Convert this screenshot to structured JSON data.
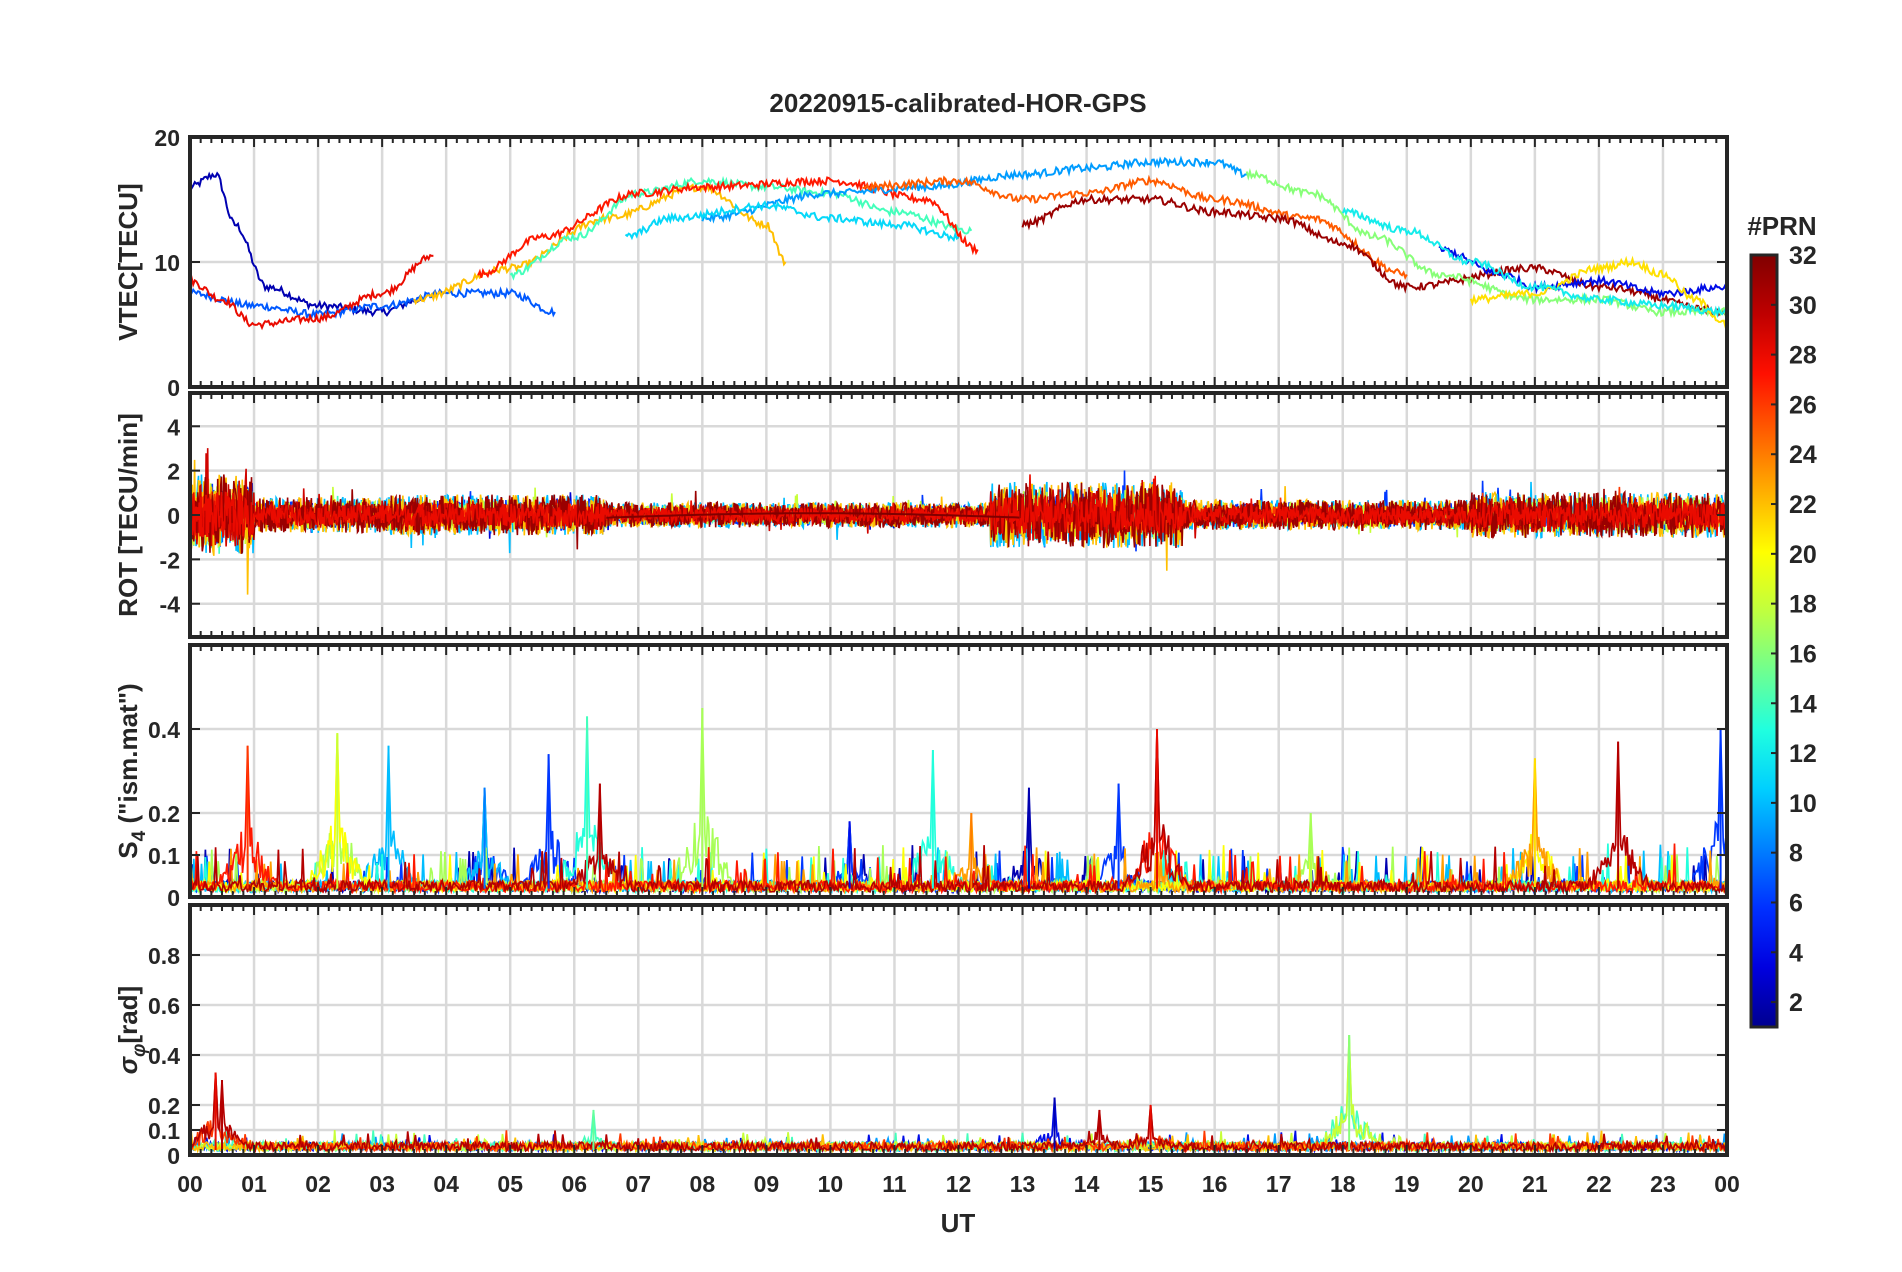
{
  "chart_data": {
    "type": "line",
    "title": "20220915-calibrated-HOR-GPS",
    "xlabel": "UT",
    "x_tick_labels": [
      "00",
      "01",
      "02",
      "03",
      "04",
      "05",
      "06",
      "07",
      "08",
      "09",
      "10",
      "11",
      "12",
      "13",
      "14",
      "15",
      "16",
      "17",
      "18",
      "19",
      "20",
      "21",
      "22",
      "23",
      "00"
    ],
    "xlim": [
      0,
      24
    ],
    "colorbar": {
      "title": "#PRN",
      "range": [
        1,
        32
      ],
      "tick_labels": [
        "2",
        "4",
        "6",
        "8",
        "10",
        "12",
        "14",
        "16",
        "18",
        "20",
        "22",
        "24",
        "26",
        "28",
        "30",
        "32"
      ],
      "colors": [
        "#00008f",
        "#0000df",
        "#0030ff",
        "#0080ff",
        "#00cfff",
        "#20ffdf",
        "#70ff8f",
        "#bfff40",
        "#ffff00",
        "#ffb000",
        "#ff6000",
        "#ff1000",
        "#bf0000",
        "#800000"
      ]
    },
    "panels": [
      {
        "name": "vtec",
        "ylabel": "VTEC[TECU]",
        "ylim": [
          0,
          20
        ],
        "ytick_labels": [
          "0",
          "10",
          "20"
        ],
        "ytick_values": [
          0,
          10,
          20
        ],
        "series": [
          {
            "prn": 2,
            "t": [
              0,
              0.4,
              0.7,
              1.2,
              2,
              3,
              3.6
            ],
            "v": [
              16,
              17,
              13,
              8,
              6.5,
              6,
              7
            ]
          },
          {
            "prn": 7,
            "t": [
              0,
              1,
              2,
              3,
              4,
              5,
              5.7
            ],
            "v": [
              7.5,
              6.5,
              5.8,
              6.5,
              7.5,
              7.5,
              6
            ]
          },
          {
            "prn": 28,
            "t": [
              0,
              0.5,
              1,
              2,
              3,
              3.8
            ],
            "v": [
              8.5,
              7,
              5,
              5.5,
              7.5,
              10.5
            ]
          },
          {
            "prn": 22,
            "t": [
              3.5,
              5,
              6.5,
              8,
              9,
              9.3
            ],
            "v": [
              7,
              9.5,
              13.5,
              16,
              13,
              10
            ]
          },
          {
            "prn": 14,
            "t": [
              5,
              6,
              7,
              8,
              9,
              10,
              11,
              12.2
            ],
            "v": [
              9,
              12,
              15.5,
              16.5,
              16,
              15.5,
              14,
              12.5
            ]
          },
          {
            "prn": 27,
            "t": [
              4.5,
              5.5,
              7,
              8,
              10,
              11.5,
              12.3
            ],
            "v": [
              9,
              12,
              15.5,
              16,
              16.5,
              15,
              11
            ]
          },
          {
            "prn": 9,
            "t": [
              8,
              10,
              11.5,
              13,
              14,
              15,
              16,
              16.5
            ],
            "v": [
              13.5,
              15.5,
              16,
              17,
              17.5,
              18,
              18,
              17
            ]
          },
          {
            "prn": 25,
            "t": [
              10.5,
              12,
              13,
              14,
              15,
              16,
              17.5,
              19
            ],
            "v": [
              16,
              16.5,
              15,
              15.5,
              16.5,
              15,
              13.5,
              9
            ]
          },
          {
            "prn": 31,
            "t": [
              13,
              14,
              15,
              16,
              17,
              18,
              19,
              21,
              22,
              24
            ],
            "v": [
              13,
              15,
              15,
              14,
              13.5,
              11.5,
              8,
              9.5,
              8,
              6
            ]
          },
          {
            "prn": 16,
            "t": [
              16.5,
              17.5,
              18.5,
              19.5,
              21,
              22,
              23,
              24
            ],
            "v": [
              17,
              15.5,
              12,
              9,
              7,
              7,
              6,
              6
            ]
          },
          {
            "prn": 4,
            "t": [
              19.5,
              20.5,
              21,
              22,
              23,
              24
            ],
            "v": [
              11,
              9,
              8,
              8.5,
              7.5,
              8
            ]
          },
          {
            "prn": 21,
            "t": [
              20,
              21,
              22,
              22.5,
              23,
              23.5,
              24
            ],
            "v": [
              7,
              7.5,
              9.5,
              10,
              9,
              7,
              5
            ]
          },
          {
            "prn": 11,
            "t": [
              6.8,
              7.5,
              9,
              10,
              11,
              12
            ],
            "v": [
              12,
              13.5,
              14.5,
              13.5,
              13,
              12
            ]
          },
          {
            "prn": 12,
            "t": [
              18,
              19,
              20,
              21,
              22,
              23,
              24
            ],
            "v": [
              14,
              12.5,
              10,
              8,
              7,
              6.5,
              6
            ]
          }
        ]
      },
      {
        "name": "rot",
        "ylabel": "ROT [TECU/min]",
        "ylim": [
          -5.5,
          5.5
        ],
        "ytick_labels": [
          "-4",
          "-2",
          "0",
          "2",
          "4"
        ],
        "ytick_values": [
          -4,
          -2,
          0,
          2,
          4
        ],
        "segments": [
          {
            "t0": 0,
            "t1": 1,
            "amp": 1.6
          },
          {
            "t0": 1,
            "t1": 3,
            "amp": 0.7
          },
          {
            "t0": 3,
            "t1": 6.5,
            "amp": 0.8
          },
          {
            "t0": 6.5,
            "t1": 12.5,
            "amp": 0.5
          },
          {
            "t0": 12.5,
            "t1": 15.5,
            "amp": 1.3
          },
          {
            "t0": 15.5,
            "t1": 20,
            "amp": 0.6
          },
          {
            "t0": 20,
            "t1": 24,
            "amp": 0.9
          }
        ]
      },
      {
        "name": "s4",
        "ylabel": "S4 (\"ism.mat\")",
        "ylabel_main": "S",
        "ylabel_sub": "4",
        "ylabel_rest": " (\"ism.mat\")",
        "ylim": [
          0,
          0.6
        ],
        "ytick_labels": [
          "0",
          "0.1",
          "0.2",
          "0.4"
        ],
        "ytick_values": [
          0,
          0.1,
          0.2,
          0.4
        ],
        "peaks": [
          {
            "t": 0.9,
            "v": 0.36,
            "prn": 26
          },
          {
            "t": 2.3,
            "v": 0.39,
            "prn": 18
          },
          {
            "t": 3.1,
            "v": 0.36,
            "prn": 10
          },
          {
            "t": 4.6,
            "v": 0.26,
            "prn": 8
          },
          {
            "t": 5.6,
            "v": 0.34,
            "prn": 6
          },
          {
            "t": 6.2,
            "v": 0.43,
            "prn": 14
          },
          {
            "t": 6.4,
            "v": 0.27,
            "prn": 30
          },
          {
            "t": 8.0,
            "v": 0.45,
            "prn": 17
          },
          {
            "t": 10.3,
            "v": 0.18,
            "prn": 4
          },
          {
            "t": 11.6,
            "v": 0.35,
            "prn": 13
          },
          {
            "t": 12.2,
            "v": 0.2,
            "prn": 24
          },
          {
            "t": 13.1,
            "v": 0.26,
            "prn": 2
          },
          {
            "t": 14.5,
            "v": 0.27,
            "prn": 6
          },
          {
            "t": 15.1,
            "v": 0.4,
            "prn": 28
          },
          {
            "t": 17.5,
            "v": 0.2,
            "prn": 17
          },
          {
            "t": 21.0,
            "v": 0.33,
            "prn": 21
          },
          {
            "t": 22.3,
            "v": 0.37,
            "prn": 30
          },
          {
            "t": 23.9,
            "v": 0.4,
            "prn": 6
          }
        ]
      },
      {
        "name": "sigma_phi",
        "ylabel": "σφ[rad]",
        "ylabel_main": "σ",
        "ylabel_sub": "φ",
        "ylabel_rest": "[rad]",
        "ylim": [
          0,
          1.0
        ],
        "ytick_labels": [
          "0",
          "0.1",
          "0.2",
          "0.4",
          "0.6",
          "0.8"
        ],
        "ytick_values": [
          0,
          0.1,
          0.2,
          0.4,
          0.6,
          0.8
        ],
        "peaks": [
          {
            "t": 0.4,
            "v": 0.33,
            "prn": 28
          },
          {
            "t": 0.5,
            "v": 0.3,
            "prn": 30
          },
          {
            "t": 6.3,
            "v": 0.18,
            "prn": 15
          },
          {
            "t": 13.5,
            "v": 0.23,
            "prn": 2
          },
          {
            "t": 14.2,
            "v": 0.18,
            "prn": 30
          },
          {
            "t": 15.0,
            "v": 0.2,
            "prn": 28
          },
          {
            "t": 18.1,
            "v": 0.48,
            "prn": 16
          }
        ]
      }
    ]
  }
}
